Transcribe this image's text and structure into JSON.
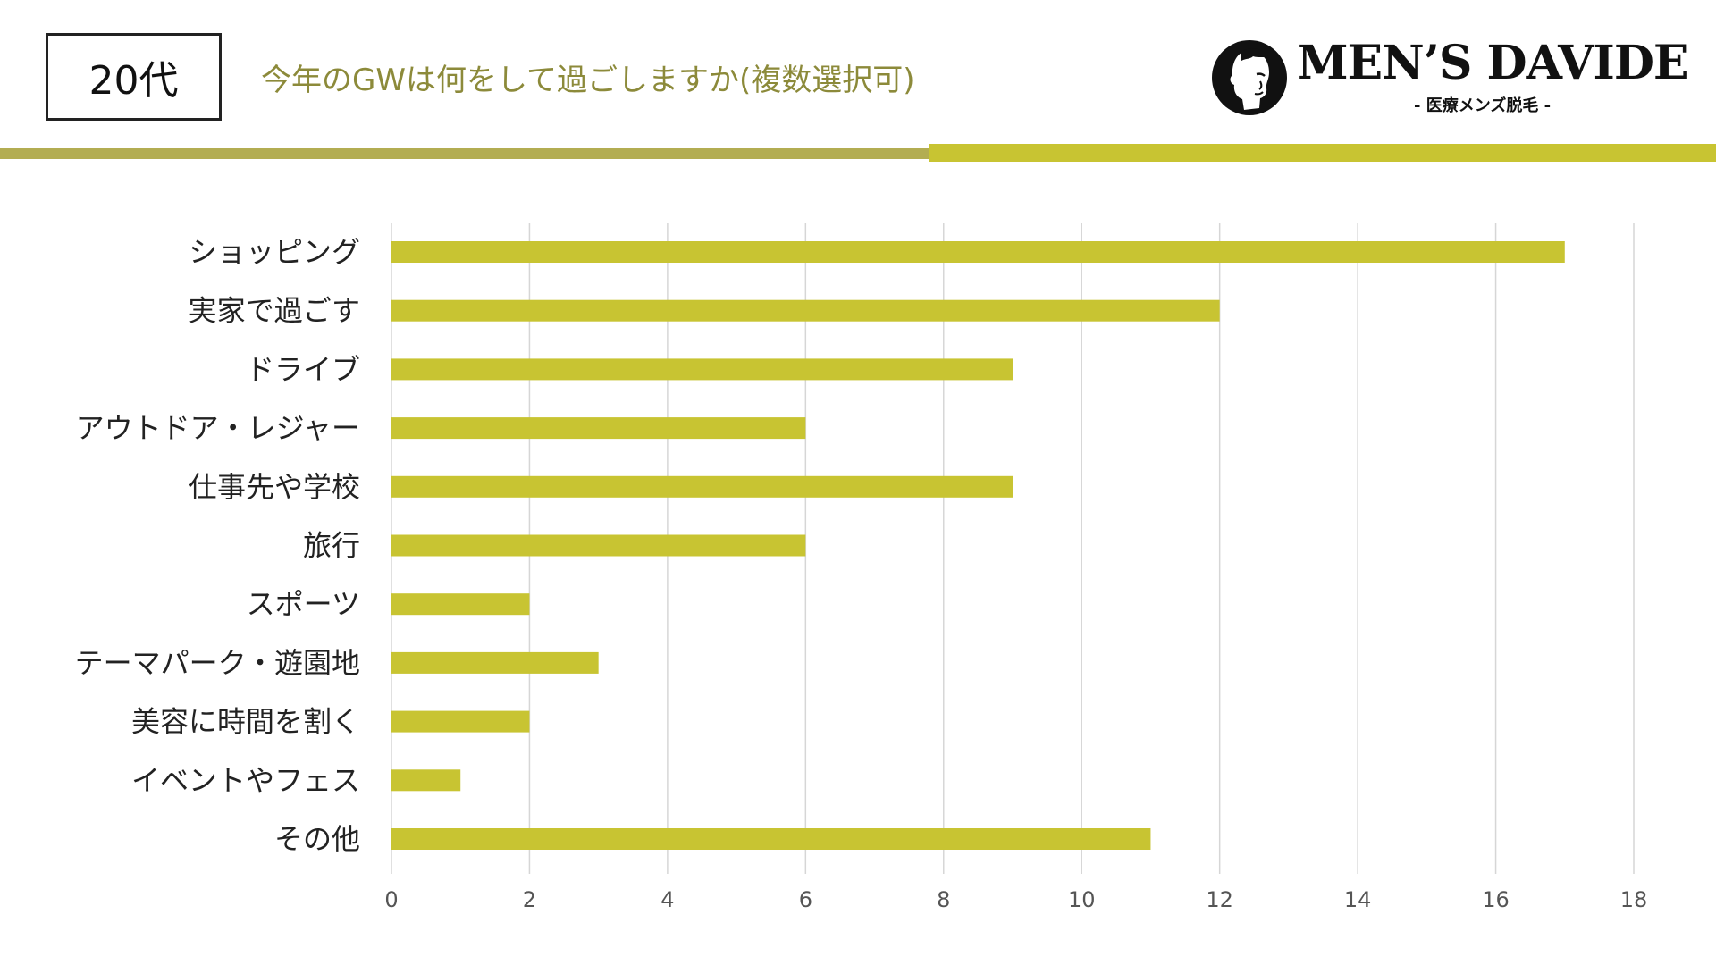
{
  "header": {
    "age_group": "20代",
    "title": "今年のGWは何をして過ごしますか(複数選択可)"
  },
  "logo": {
    "name": "MEN’S DAVIDE",
    "subtitle": "- 医療メンズ脱毛 -"
  },
  "colors": {
    "bar": "#c8c432",
    "title": "#8c8a3a",
    "band_left": "#b3ad52",
    "band_right": "#c8c432",
    "grid": "#d6d6d6"
  },
  "chart_data": {
    "type": "bar",
    "orientation": "horizontal",
    "categories": [
      "ショッピング",
      "実家で過ごす",
      "ドライブ",
      "アウトドア・レジャー",
      "仕事先や学校",
      "旅行",
      "スポーツ",
      "テーマパーク・遊園地",
      "美容に時間を割く",
      "イベントやフェス",
      "その他"
    ],
    "values": [
      17,
      12,
      9,
      6,
      9,
      6,
      2,
      3,
      2,
      1,
      11
    ],
    "xlim": [
      0,
      18
    ],
    "xticks": [
      "0",
      "2",
      "4",
      "6",
      "8",
      "10",
      "12",
      "14",
      "16",
      "18"
    ],
    "grid": true,
    "legend": "none"
  }
}
